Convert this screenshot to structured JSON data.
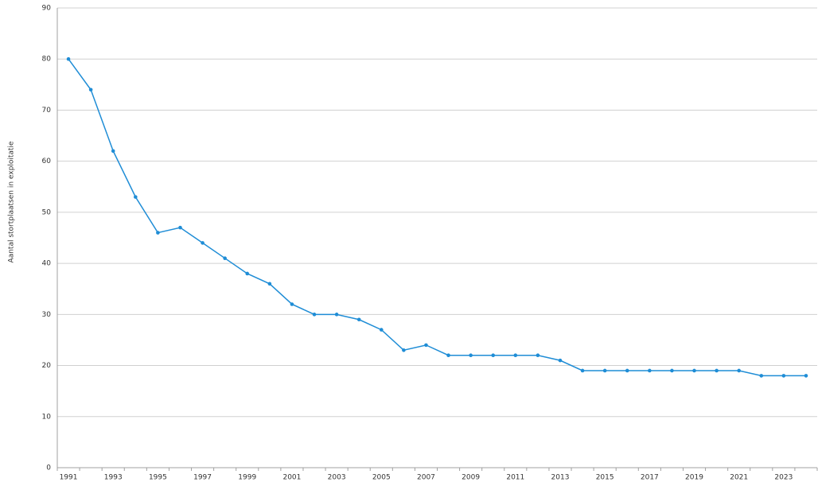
{
  "chart_data": {
    "type": "line",
    "y_label": "Aantal stortplaatsen in exploitatie",
    "categories": [
      "1991",
      null,
      "1993",
      null,
      "1995",
      null,
      "1997",
      null,
      "1999",
      null,
      "2001",
      null,
      "2003",
      null,
      "2005",
      null,
      "2007",
      null,
      "2009",
      null,
      "2011",
      null,
      "2013",
      null,
      "2015",
      null,
      "2017",
      null,
      "2019",
      null,
      "2021",
      null,
      "2023",
      null
    ],
    "values": [
      80,
      74,
      62,
      53,
      46,
      47,
      44,
      41,
      38,
      36,
      32,
      30,
      30,
      29,
      27,
      23,
      24,
      22,
      22,
      22,
      22,
      22,
      21,
      19,
      19,
      19,
      19,
      19,
      19,
      19,
      19,
      18,
      18,
      18
    ],
    "color": "#1f8dd6",
    "ylim": [
      0,
      90
    ],
    "yticks": [
      0,
      10,
      20,
      30,
      40,
      50,
      60,
      70,
      80,
      90
    ],
    "grid": true
  }
}
